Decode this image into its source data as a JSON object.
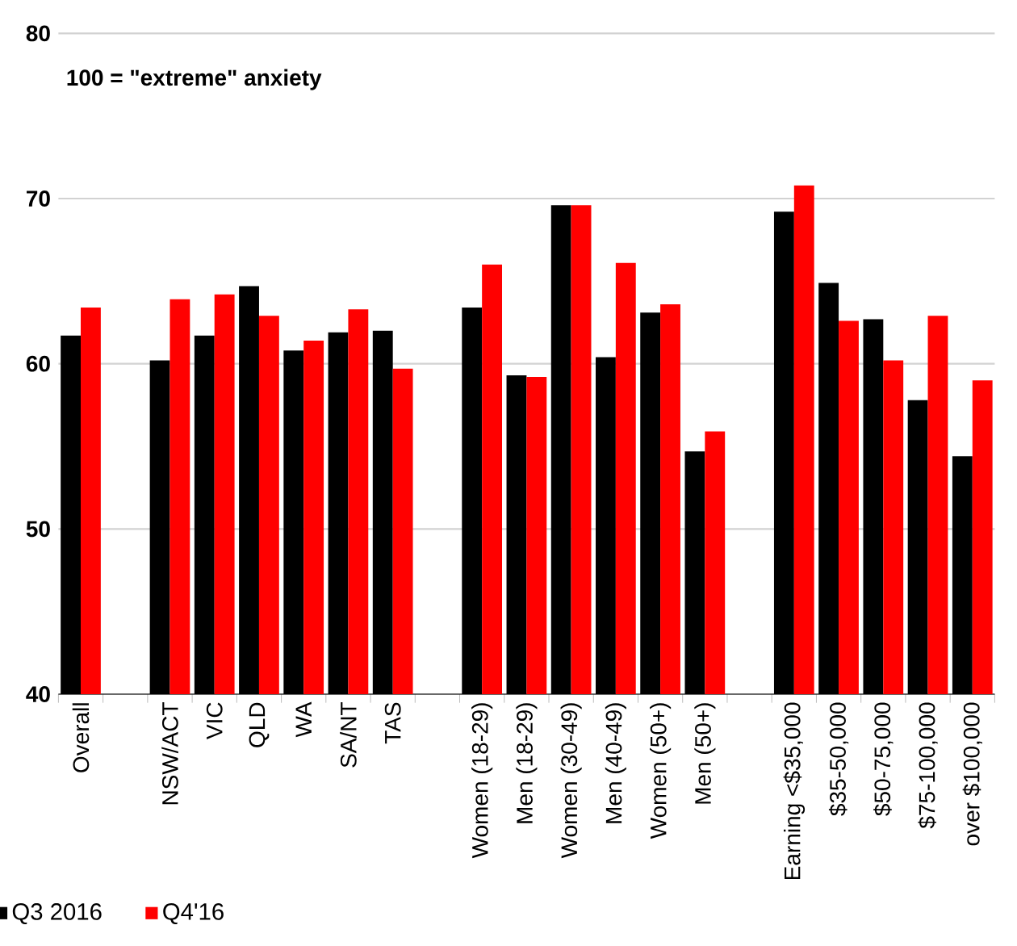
{
  "chart_data": {
    "type": "bar",
    "categories": [
      "Overall",
      null,
      "NSW/ACT",
      "VIC",
      "QLD",
      "WA",
      "SA/NT",
      "TAS",
      null,
      "Women (18-29)",
      "Men (18-29)",
      "Women (30-49)",
      "Men (40-49)",
      "Women (50+)",
      "Men (50+)",
      null,
      "Earning <$35,000",
      "$35-50,000",
      "$50-75,000",
      "$75-100,000",
      "over $100,000"
    ],
    "series": [
      {
        "name": "Q3 2016",
        "color": "#000000",
        "values": [
          61.7,
          null,
          60.2,
          61.7,
          64.7,
          60.8,
          61.9,
          62.0,
          null,
          63.4,
          59.3,
          69.6,
          60.4,
          63.1,
          54.7,
          null,
          69.2,
          64.9,
          62.7,
          57.8,
          54.4
        ]
      },
      {
        "name": "Q4'16",
        "color": "#ff0000",
        "values": [
          63.4,
          null,
          63.9,
          64.2,
          62.9,
          61.4,
          63.3,
          59.7,
          null,
          66.0,
          59.2,
          69.6,
          66.1,
          63.6,
          55.9,
          null,
          70.8,
          62.6,
          60.2,
          62.9,
          59.0
        ]
      }
    ],
    "ylim": [
      40,
      80
    ],
    "yticks": [
      40,
      50,
      60,
      70,
      80
    ],
    "grid": "y",
    "legend": "bottom left",
    "annotations": [
      "100 = \"extreme\" anxiety"
    ]
  }
}
